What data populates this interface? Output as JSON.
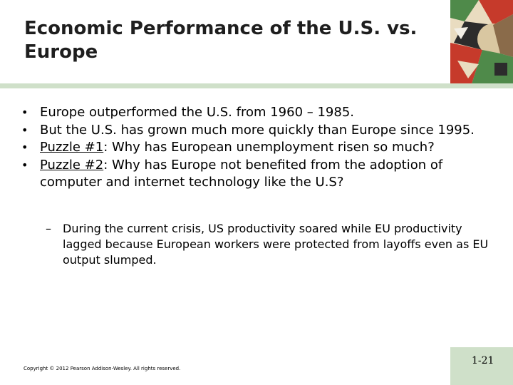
{
  "slide": {
    "title_line1": "Economic Performance of the U.S. vs.",
    "title_line2": "Europe",
    "bullets": [
      {
        "text": "Europe outperformed the U.S. from 1960 – 1985."
      },
      {
        "text": "But the U.S. has grown much more quickly than Europe since 1995."
      },
      {
        "label": "Puzzle #1",
        "text": ":  Why has European unemployment risen so much?"
      },
      {
        "label": "Puzzle #2",
        "text": ":  Why has Europe not benefited from the adoption of computer and internet technology like the U.S?"
      }
    ],
    "sub_bullet": "During the current crisis, US productivity soared while EU productivity lagged because European workers were protected from layoffs even as EU output slumped.",
    "copyright": "Copyright © 2012 Pearson Addison-Wesley. All rights reserved.",
    "slide_number": "1-21"
  },
  "colors": {
    "accent_bar": "#cfe0c9",
    "art_red": "#c63a2b",
    "art_green": "#4f8a4a",
    "art_dark": "#2c2c2c",
    "art_cream": "#e9dcc0"
  }
}
